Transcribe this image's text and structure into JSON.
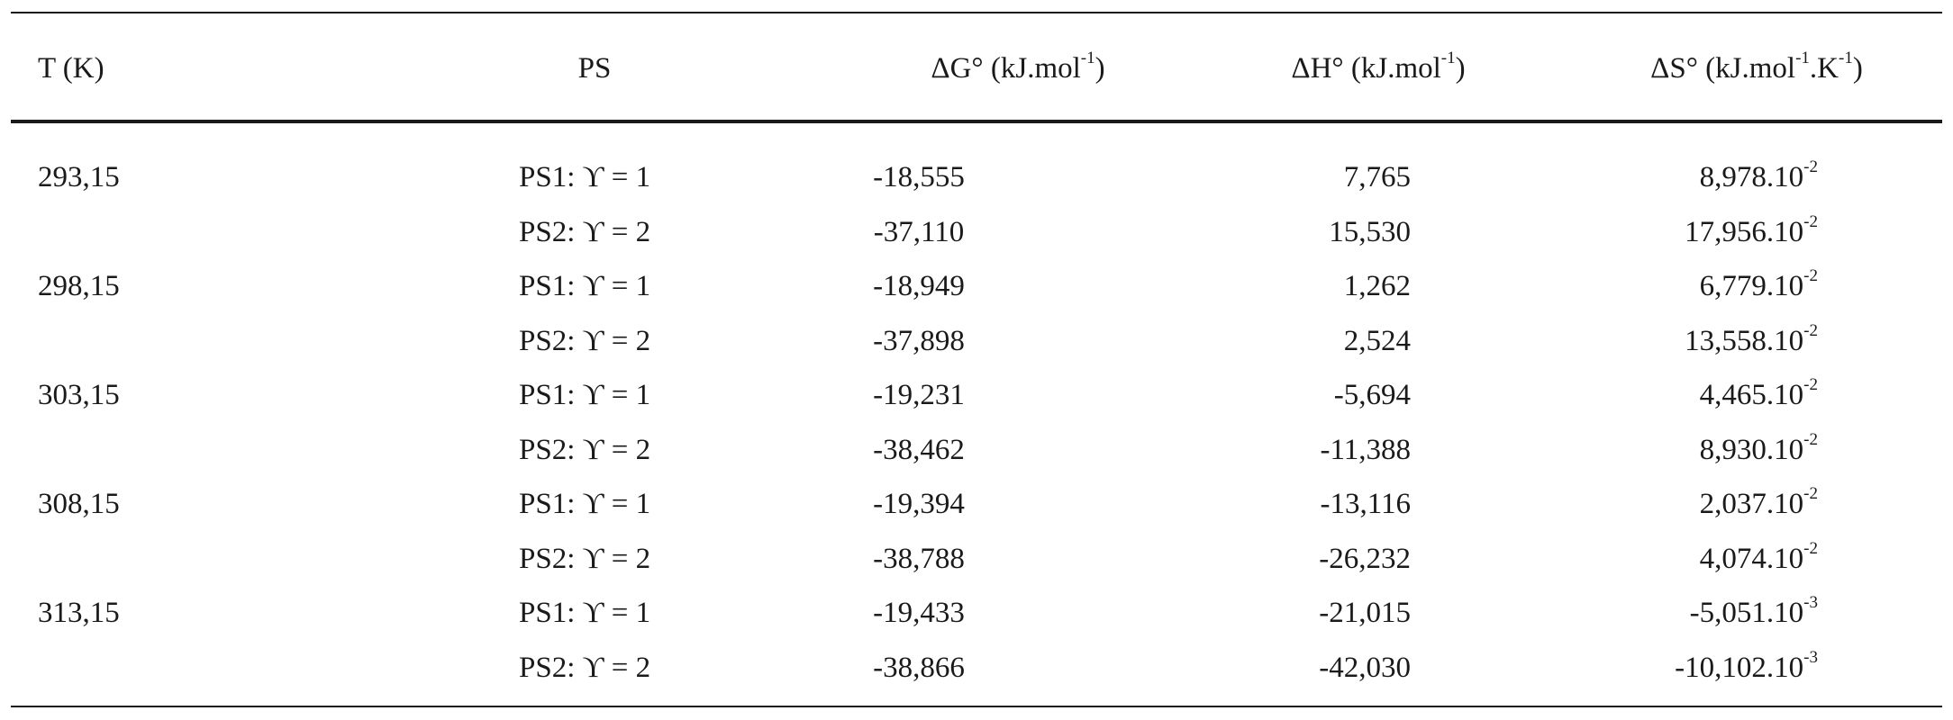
{
  "header": {
    "t": "T (K)",
    "ps": "PS",
    "dg": "ΔG° (kJ.mol",
    "dg_sup": "-1",
    "dg_end": ")",
    "dh": "ΔH° (kJ.mol",
    "dh_sup": "-1",
    "dh_end": ")",
    "ds": "ΔS° (kJ.mol",
    "ds_sup1": "-1",
    "ds_mid": ".K",
    "ds_sup2": "-1",
    "ds_end": ")"
  },
  "rows": [
    {
      "t": "293,15",
      "ps": "PS1: ϒ = 1",
      "dg": "-18,555",
      "dh": "7,765",
      "ds": "8,978.10",
      "ds_exp": "-2"
    },
    {
      "t": "",
      "ps": "PS2: ϒ = 2",
      "dg": "-37,110",
      "dh": "15,530",
      "ds": "17,956.10",
      "ds_exp": "-2"
    },
    {
      "t": "298,15",
      "ps": "PS1: ϒ = 1",
      "dg": "-18,949",
      "dh": "1,262",
      "ds": "6,779.10",
      "ds_exp": "-2"
    },
    {
      "t": "",
      "ps": "PS2: ϒ = 2",
      "dg": "-37,898",
      "dh": "2,524",
      "ds": "13,558.10",
      "ds_exp": "-2"
    },
    {
      "t": "303,15",
      "ps": "PS1: ϒ = 1",
      "dg": "-19,231",
      "dh": "-5,694",
      "ds": "4,465.10",
      "ds_exp": "-2"
    },
    {
      "t": "",
      "ps": "PS2: ϒ = 2",
      "dg": "-38,462",
      "dh": "-11,388",
      "ds": "8,930.10",
      "ds_exp": "-2"
    },
    {
      "t": "308,15",
      "ps": "PS1: ϒ = 1",
      "dg": "-19,394",
      "dh": "-13,116",
      "ds": "2,037.10",
      "ds_exp": "-2"
    },
    {
      "t": "",
      "ps": "PS2: ϒ = 2",
      "dg": "-38,788",
      "dh": "-26,232",
      "ds": "4,074.10",
      "ds_exp": "-2"
    },
    {
      "t": "313,15",
      "ps": "PS1: ϒ = 1",
      "dg": "-19,433",
      "dh": "-21,015",
      "ds": "-5,051.10",
      "ds_exp": "-3"
    },
    {
      "t": "",
      "ps": "PS2: ϒ = 2",
      "dg": "-38,866",
      "dh": "-42,030",
      "ds": "-10,102.10",
      "ds_exp": "-3"
    }
  ]
}
